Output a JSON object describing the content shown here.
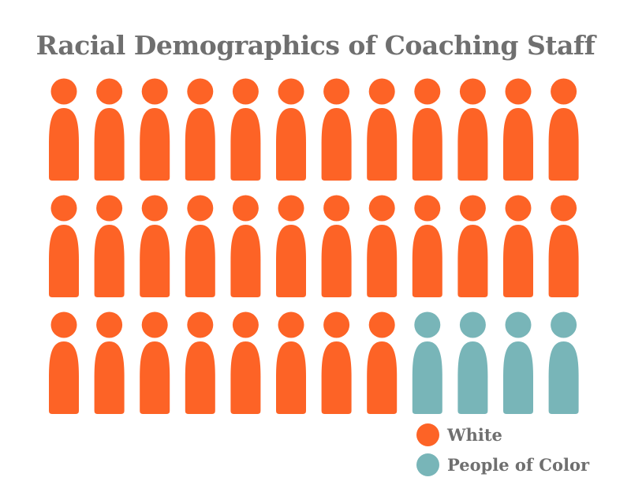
{
  "title": "Racial Demographics of Coaching Staff",
  "colors": {
    "white": "#fd6326",
    "people_of_color": "#78b5b8",
    "text": "#6f6f6f"
  },
  "chart_data": {
    "type": "pictograph",
    "title": "Racial Demographics of Coaching Staff",
    "icon": "person-icon",
    "rows": 3,
    "columns": 12,
    "total": 36,
    "categories": [
      "White",
      "People of Color"
    ],
    "values": [
      32,
      4
    ],
    "legend_position": "bottom-right"
  },
  "legend": [
    {
      "label": "White",
      "color": "#fd6326"
    },
    {
      "label": "People of Color",
      "color": "#78b5b8"
    }
  ]
}
